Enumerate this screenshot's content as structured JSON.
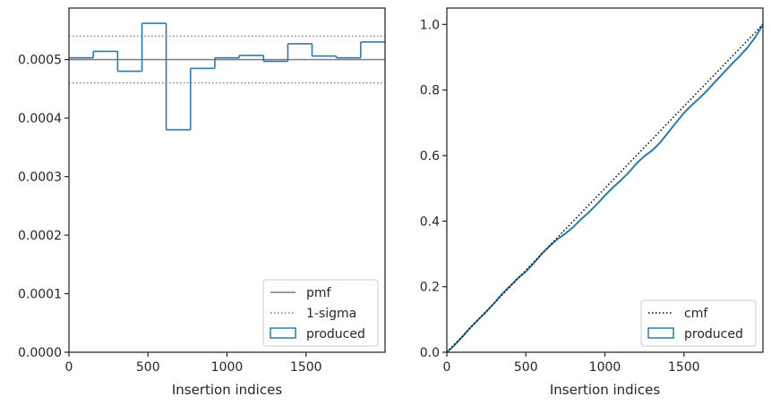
{
  "colors": {
    "produced": "#2b7bb0",
    "pmf": "#7f7f7f",
    "sigma": "#7f7f7f",
    "cmf": "#000000",
    "axis": "#262626"
  },
  "chart_data": [
    {
      "type": "step",
      "xlabel": "Insertion indices",
      "ylabel": "",
      "xlim": [
        0,
        2000
      ],
      "ylim": [
        0,
        0.000588
      ],
      "xticks": [
        0,
        500,
        1000,
        1500
      ],
      "xtick_labels": [
        "0",
        "500",
        "1000",
        "1500"
      ],
      "yticks": [
        0,
        0.0001,
        0.0002,
        0.0003,
        0.0004,
        0.0005
      ],
      "ytick_labels": [
        "0.0000",
        "0.0001",
        "0.0002",
        "0.0003",
        "0.0004",
        "0.0005"
      ],
      "pmf": 0.0005,
      "sigma": [
        0.00046,
        0.00054
      ],
      "produced_bin_edges": [
        0,
        154,
        308,
        462,
        615,
        769,
        923,
        1077,
        1231,
        1385,
        1538,
        1692,
        1846,
        2000
      ],
      "produced_values": [
        0.000503,
        0.000514,
        0.00048,
        0.000562,
        0.00038,
        0.000485,
        0.000503,
        0.000507,
        0.000497,
        0.000527,
        0.000506,
        0.000503,
        0.00053
      ],
      "legend": {
        "position": "lower right",
        "entries": [
          {
            "label": "pmf",
            "style": "solid"
          },
          {
            "label": "1-sigma",
            "style": "dotted"
          },
          {
            "label": "produced",
            "style": "patch"
          }
        ]
      }
    },
    {
      "type": "line",
      "xlabel": "Insertion indices",
      "ylabel": "",
      "xlim": [
        0,
        2000
      ],
      "ylim": [
        0,
        1.05
      ],
      "xticks": [
        0,
        500,
        1000,
        1500
      ],
      "xtick_labels": [
        "0",
        "500",
        "1000",
        "1500"
      ],
      "yticks": [
        0,
        0.2,
        0.4,
        0.6,
        0.8,
        1.0
      ],
      "ytick_labels": [
        "0.0",
        "0.2",
        "0.4",
        "0.6",
        "0.8",
        "1.0"
      ],
      "cmf": {
        "x": [
          0,
          2000
        ],
        "y": [
          0,
          1.0
        ]
      },
      "produced": {
        "x": [
          0,
          50,
          100,
          150,
          200,
          250,
          300,
          350,
          400,
          450,
          500,
          550,
          600,
          650,
          700,
          750,
          800,
          850,
          900,
          950,
          1000,
          1050,
          1100,
          1150,
          1200,
          1250,
          1300,
          1350,
          1400,
          1450,
          1500,
          1550,
          1600,
          1650,
          1700,
          1750,
          1800,
          1850,
          1900,
          1950,
          2000
        ],
        "y": [
          0,
          0.022,
          0.048,
          0.076,
          0.1,
          0.124,
          0.15,
          0.178,
          0.202,
          0.226,
          0.246,
          0.272,
          0.3,
          0.324,
          0.345,
          0.362,
          0.382,
          0.406,
          0.428,
          0.452,
          0.478,
          0.502,
          0.524,
          0.548,
          0.576,
          0.598,
          0.616,
          0.64,
          0.67,
          0.7,
          0.73,
          0.754,
          0.776,
          0.8,
          0.826,
          0.852,
          0.878,
          0.902,
          0.928,
          0.96,
          1.0
        ]
      },
      "legend": {
        "position": "lower right",
        "entries": [
          {
            "label": "cmf",
            "style": "dotted"
          },
          {
            "label": "produced",
            "style": "patch"
          }
        ]
      }
    }
  ]
}
